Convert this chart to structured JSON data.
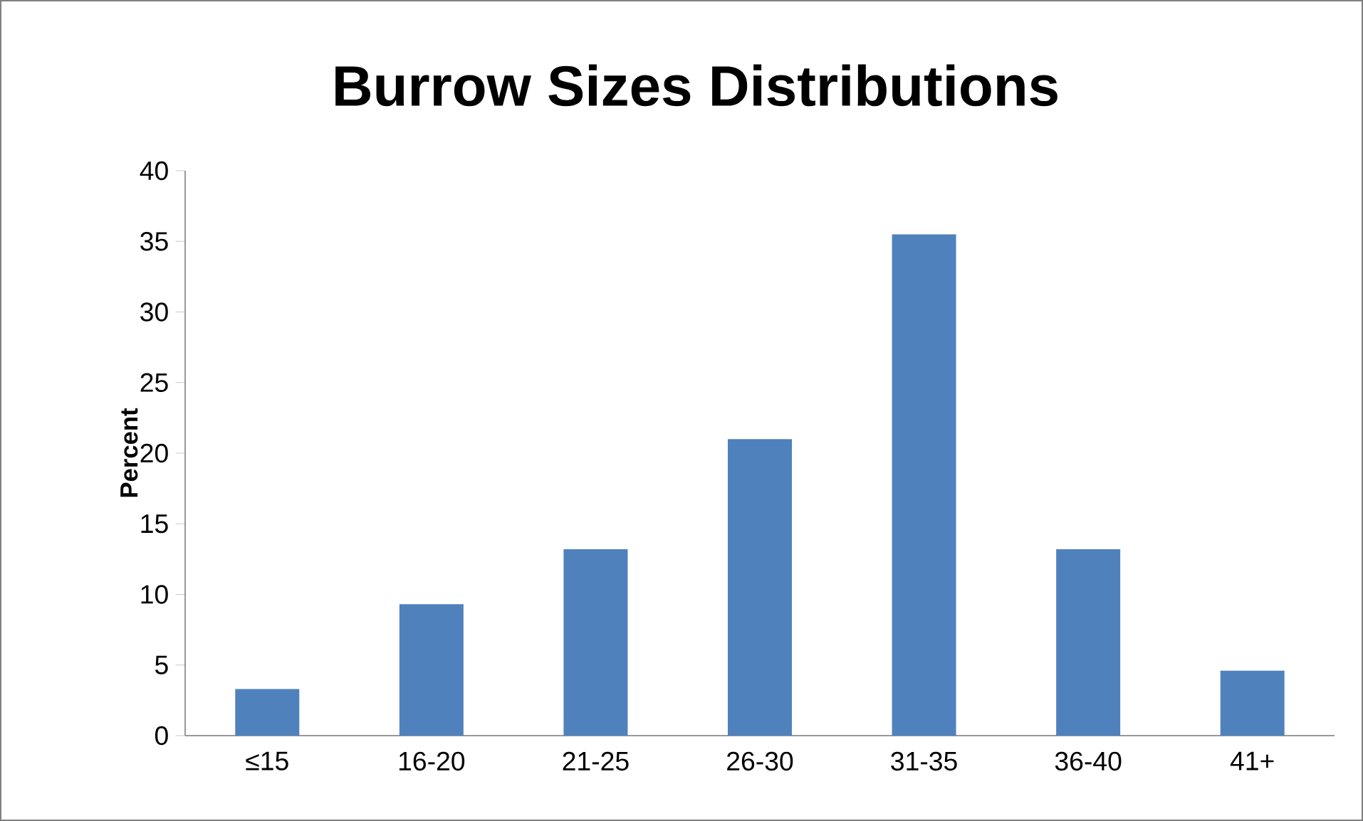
{
  "chart_data": {
    "type": "bar",
    "title": "Burrow Sizes Distributions",
    "ylabel": "Percent",
    "categories": [
      "≤15",
      "16-20",
      "21-25",
      "26-30",
      "31-35",
      "36-40",
      "41+"
    ],
    "values": [
      3.3,
      9.3,
      13.2,
      21.0,
      35.5,
      13.2,
      4.6
    ],
    "color": "#4f81bd",
    "ylim": [
      0,
      40
    ],
    "yticks": [
      0,
      5,
      10,
      15,
      20,
      25,
      30,
      35,
      40
    ]
  }
}
